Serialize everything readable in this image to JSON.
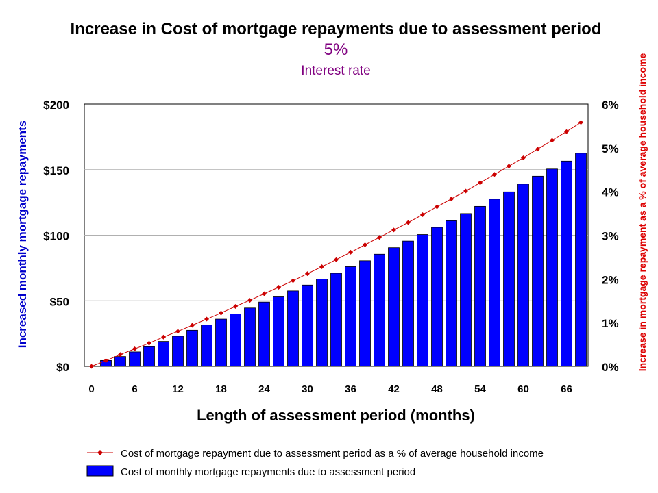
{
  "chart_data": {
    "type": "bar",
    "title": "Increase in Cost of mortgage repayments due to assessment period",
    "subtitle_value": "5%",
    "subtitle_label": "Interest rate",
    "xlabel": "Length of assessment period (months)",
    "ylabel": "Increased monthly mortgage repayments",
    "y2label": "Increase in mortgage repayment as a % of average household income",
    "ylim": [
      0,
      200
    ],
    "y2lim": [
      0,
      6
    ],
    "yticks": [
      "$0",
      "$50",
      "$100",
      "$150",
      "$200"
    ],
    "y2ticks": [
      "0%",
      "1%",
      "2%",
      "3%",
      "4%",
      "5%",
      "6%"
    ],
    "xticks": [
      "0",
      "6",
      "12",
      "18",
      "24",
      "30",
      "36",
      "42",
      "48",
      "54",
      "60",
      "66"
    ],
    "grid": true,
    "legend_position": "bottom",
    "x": [
      0,
      2,
      4,
      6,
      8,
      10,
      12,
      14,
      16,
      18,
      20,
      22,
      24,
      26,
      28,
      30,
      32,
      34,
      36,
      38,
      40,
      42,
      44,
      46,
      48,
      50,
      52,
      54,
      56,
      58,
      60,
      62,
      64,
      66,
      68
    ],
    "series": [
      {
        "name": "Cost of monthly mortgage repayments due to assessment period",
        "kind": "bar",
        "axis": "left",
        "color": "#0000ff",
        "values": [
          0,
          4.5,
          7.5,
          11,
          15,
          19,
          23,
          27.5,
          31.5,
          36,
          40,
          44.5,
          49,
          53,
          57.5,
          62,
          66.5,
          71,
          76,
          80.5,
          85.5,
          90.5,
          95.5,
          100.5,
          106,
          111,
          116.5,
          122,
          127.5,
          133,
          139,
          145,
          150.5,
          156.5,
          162.5
        ]
      },
      {
        "name": "Cost of mortgage repayment due to assessment period as a % of average household income",
        "kind": "line",
        "axis": "right",
        "color": "#cc0000",
        "values": [
          0,
          0.13,
          0.27,
          0.4,
          0.53,
          0.67,
          0.8,
          0.94,
          1.08,
          1.22,
          1.37,
          1.51,
          1.66,
          1.81,
          1.96,
          2.12,
          2.28,
          2.44,
          2.61,
          2.78,
          2.95,
          3.12,
          3.29,
          3.47,
          3.65,
          3.83,
          4.01,
          4.2,
          4.39,
          4.58,
          4.77,
          4.97,
          5.17,
          5.37,
          5.58
        ]
      }
    ]
  }
}
